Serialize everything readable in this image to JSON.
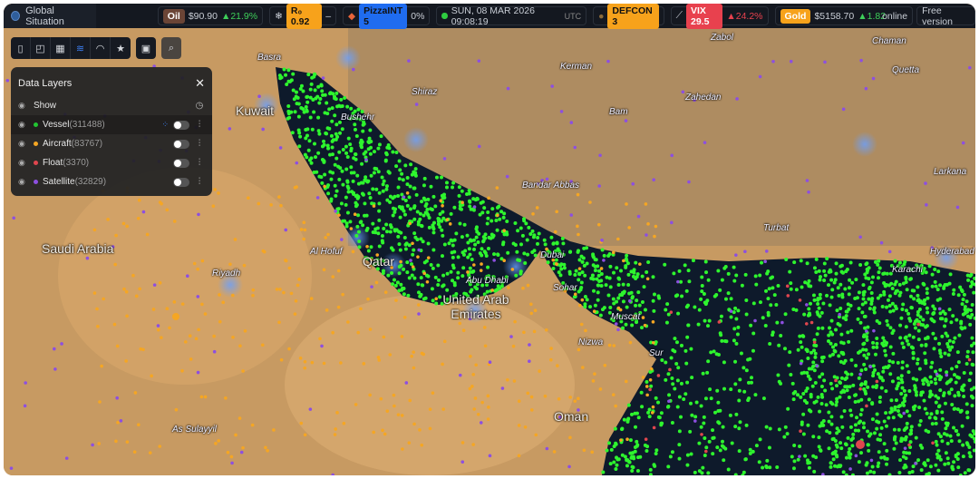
{
  "header": {
    "title": "Global Situation",
    "oil": {
      "label": "Oil",
      "price": "$90.90",
      "change": "▲21.9%"
    },
    "r0": {
      "label": "R₀ 0.92",
      "change": "–"
    },
    "pizza": {
      "label": "PizzaINT 5",
      "pct": "0%"
    },
    "datetime": {
      "text": "SUN, 08 MAR 2026 09:08:19",
      "tz": "UTC"
    },
    "defcon": {
      "label": "DEFCON 3"
    },
    "vix": {
      "label": "VIX 29.5",
      "change": "▲24.2%"
    },
    "gold": {
      "label": "Gold",
      "price": "$5158.70",
      "change": "▲1.82"
    },
    "online": "online",
    "plan": "Free version"
  },
  "toolbar": {
    "icons": [
      "map-icon",
      "note-icon",
      "building-icon",
      "layers-icon",
      "rss-icon",
      "star-icon"
    ],
    "save": "save-icon",
    "search": "search-icon"
  },
  "panel": {
    "title": "Data Layers",
    "show_label": "Show",
    "layers": [
      {
        "name": "Vessel",
        "count": "(311488)",
        "color": "#22c531"
      },
      {
        "name": "Aircraft",
        "count": "(83767)",
        "color": "#f5a623"
      },
      {
        "name": "Float",
        "count": "(3370)",
        "color": "#e0464e"
      },
      {
        "name": "Satellite",
        "count": "(32829)",
        "color": "#8d4fe0"
      }
    ]
  },
  "map": {
    "countries": [
      "Saudi Arabia",
      "Kuwait",
      "Qatar",
      "United Arab Emirates",
      "Oman"
    ],
    "cities": [
      "Basra",
      "Shiraz",
      "Kerman",
      "Bam",
      "Zahedan",
      "Bushehr",
      "Bandar Abbas",
      "Turbat",
      "Karachi",
      "Hyderabad",
      "Larkana",
      "Quetta",
      "Chaman",
      "Zabol",
      "Riyadh",
      "Al Hofuf",
      "Abu Dhabi",
      "Dubai",
      "Sohar",
      "Muscat",
      "Nizwa",
      "Sur",
      "As Sulayyil"
    ],
    "colors": {
      "vessel": "#2ef52e",
      "aircraft": "#f5a623",
      "satellite": "#8d4fe0",
      "float": "#e0464e",
      "water": "#0e1a2b",
      "land": "#c79a62"
    }
  }
}
